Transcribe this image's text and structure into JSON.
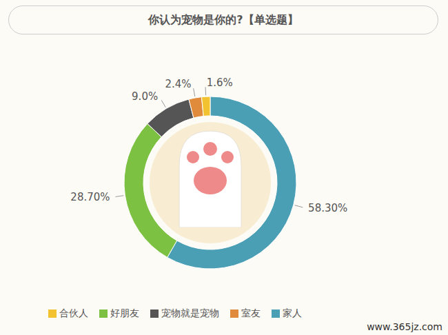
{
  "chart_data": {
    "type": "pie",
    "title": "你认为宠物是你的?【单选题】",
    "categories": [
      "家人",
      "好朋友",
      "宠物就是宠物",
      "室友",
      "合伙人"
    ],
    "values": [
      58.3,
      28.7,
      9.0,
      2.4,
      1.6
    ],
    "value_labels": [
      "58.30%",
      "28.70%",
      "9.0%",
      "2.4%",
      "1.6%"
    ],
    "colors": [
      "#4a9fb5",
      "#7dc142",
      "#555555",
      "#e08a3c",
      "#f2c230"
    ],
    "data_labels": true,
    "legend": "bottom",
    "watermark": "www.365jz.com"
  }
}
